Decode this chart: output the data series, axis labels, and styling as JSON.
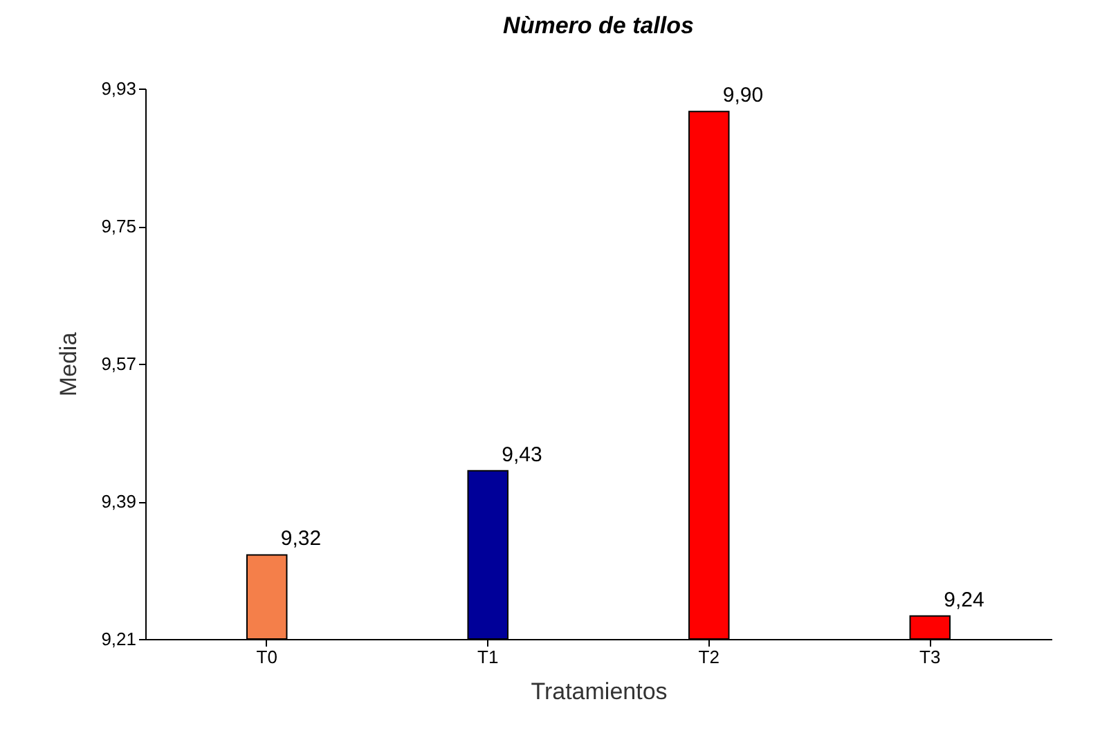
{
  "chart_data": {
    "type": "bar",
    "title": "Nùmero de tallos",
    "xlabel": "Tratamientos",
    "ylabel": "Media",
    "categories": [
      "T0",
      "T1",
      "T2",
      "T3"
    ],
    "values": [
      9.32,
      9.43,
      9.9,
      9.24
    ],
    "colors": [
      "#f47f4a",
      "#000099",
      "#ff0000",
      "#ff0000"
    ],
    "value_labels": [
      "9,32",
      "9,43",
      "9,90",
      "9,24"
    ],
    "ylim": [
      9.21,
      9.93
    ],
    "yticks": [
      {
        "value": 9.21,
        "label": "9,21"
      },
      {
        "value": 9.39,
        "label": "9,39"
      },
      {
        "value": 9.57,
        "label": "9,57"
      },
      {
        "value": 9.75,
        "label": "9,75"
      },
      {
        "value": 9.93,
        "label": "9,93"
      }
    ],
    "grid": false
  }
}
